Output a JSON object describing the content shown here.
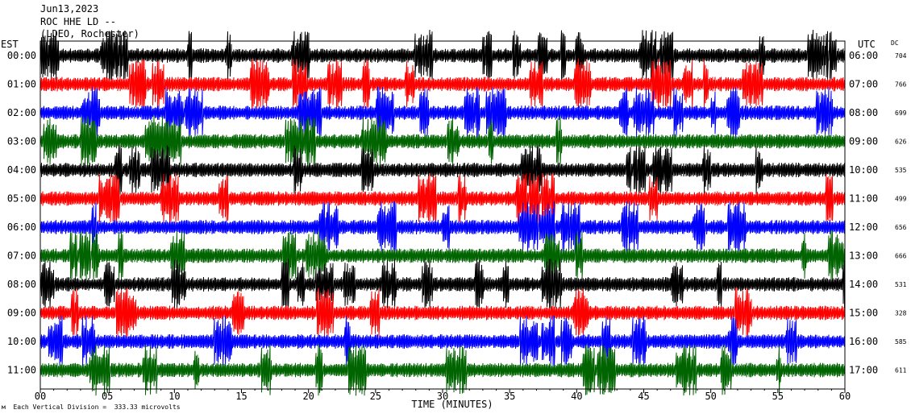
{
  "header": {
    "date": "Jun13,2023",
    "station": "ROC HHE LD --",
    "network": "(LDEO, Rochester)"
  },
  "left_zone": "EST",
  "right_zone": "UTC",
  "dc_label": "DC",
  "footer": "Each Vertical Division =  333.33 microvolts",
  "colors": {
    "black": "#000000",
    "red": "#ff0000",
    "blue": "#0000ff",
    "green": "#006400"
  },
  "chart_data": {
    "type": "line",
    "xlabel": "TIME (MINUTES)",
    "xlim": [
      0,
      60
    ],
    "x_ticks": [
      "00",
      "05",
      "10",
      "15",
      "20",
      "25",
      "30",
      "35",
      "40",
      "45",
      "50",
      "55",
      "60"
    ],
    "series": [
      {
        "est": "00:00",
        "utc": "06:00",
        "dc": "704",
        "color": "black"
      },
      {
        "est": "01:00",
        "utc": "07:00",
        "dc": "766",
        "color": "red"
      },
      {
        "est": "02:00",
        "utc": "08:00",
        "dc": "699",
        "color": "blue"
      },
      {
        "est": "03:00",
        "utc": "09:00",
        "dc": "626",
        "color": "green"
      },
      {
        "est": "04:00",
        "utc": "10:00",
        "dc": "535",
        "color": "black"
      },
      {
        "est": "05:00",
        "utc": "11:00",
        "dc": "499",
        "color": "red"
      },
      {
        "est": "06:00",
        "utc": "12:00",
        "dc": "656",
        "color": "blue"
      },
      {
        "est": "07:00",
        "utc": "13:00",
        "dc": "666",
        "color": "green"
      },
      {
        "est": "08:00",
        "utc": "14:00",
        "dc": "531",
        "color": "black"
      },
      {
        "est": "09:00",
        "utc": "15:00",
        "dc": "328",
        "color": "red"
      },
      {
        "est": "10:00",
        "utc": "16:00",
        "dc": "585",
        "color": "blue"
      },
      {
        "est": "11:00",
        "utc": "17:00",
        "dc": "611",
        "color": "green"
      }
    ]
  }
}
